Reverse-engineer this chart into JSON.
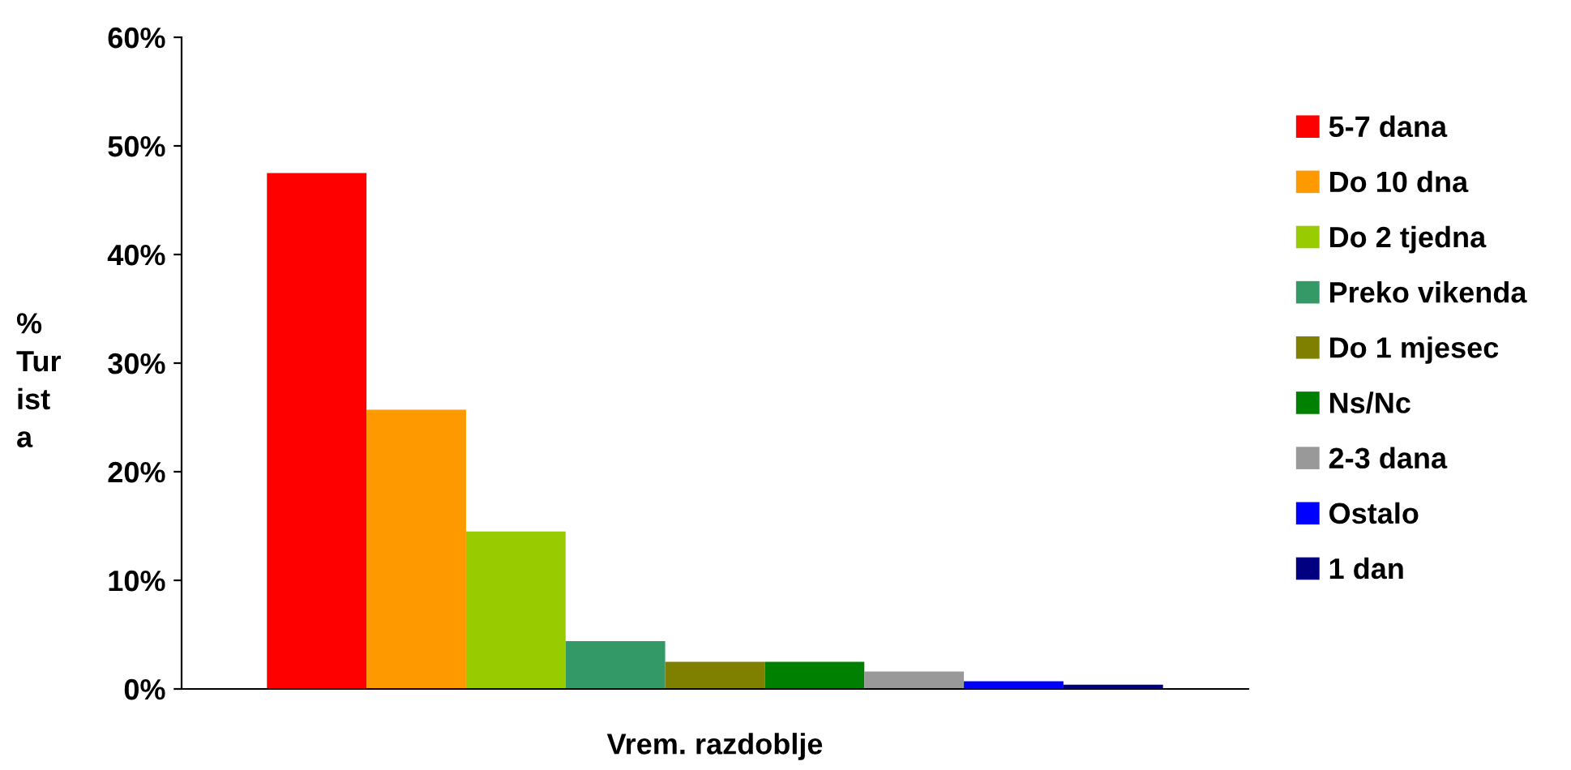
{
  "chart_data": {
    "type": "bar",
    "xlabel": "Vrem. razdoblje",
    "ylabel": "%\nTur\nist\na",
    "categories": [
      null
    ],
    "series": [
      {
        "name": "5-7 dana",
        "color": "#ff0000",
        "values": [
          47.5
        ]
      },
      {
        "name": "Do 10 dna",
        "color": "#ff9900",
        "values": [
          25.7
        ]
      },
      {
        "name": "Do 2 tjedna",
        "color": "#99cc00",
        "values": [
          14.5
        ]
      },
      {
        "name": "Preko vikenda",
        "color": "#339966",
        "values": [
          4.4
        ]
      },
      {
        "name": "Do 1 mjesec",
        "color": "#808000",
        "values": [
          2.5
        ]
      },
      {
        "name": "Ns/Nc",
        "color": "#008000",
        "values": [
          2.5
        ]
      },
      {
        "name": "2-3 dana",
        "color": "#999999",
        "values": [
          1.6
        ]
      },
      {
        "name": "Ostalo",
        "color": "#0000ff",
        "values": [
          0.7
        ]
      },
      {
        "name": "1 dan",
        "color": "#000080",
        "values": [
          0.4
        ]
      }
    ],
    "ylim": [
      0,
      60
    ],
    "yticks": [
      {
        "value": 0,
        "label": "0%"
      },
      {
        "value": 10,
        "label": "10%"
      },
      {
        "value": 20,
        "label": "20%"
      },
      {
        "value": 30,
        "label": "30%"
      },
      {
        "value": 40,
        "label": "40%"
      },
      {
        "value": 50,
        "label": "50%"
      },
      {
        "value": 60,
        "label": "60%"
      }
    ],
    "grid": false,
    "legend": "right"
  }
}
